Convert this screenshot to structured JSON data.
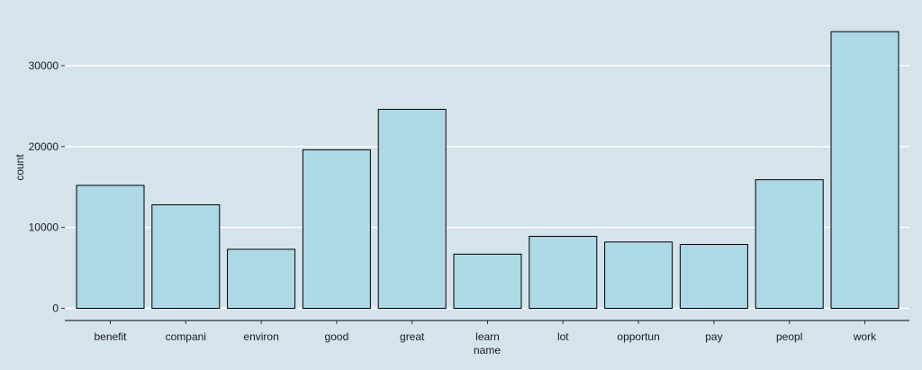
{
  "chart_data": {
    "type": "bar",
    "categories": [
      "benefit",
      "compani",
      "environ",
      "good",
      "great",
      "learn",
      "lot",
      "opportun",
      "pay",
      "peopl",
      "work"
    ],
    "values": [
      15200,
      12800,
      7300,
      19600,
      24600,
      6700,
      8900,
      8200,
      7900,
      15900,
      34200
    ],
    "xlabel": "name",
    "ylabel": "count",
    "ylim": [
      -1500,
      37000
    ],
    "yticks": [
      0,
      10000,
      20000,
      30000
    ],
    "ytick_labels": [
      "0",
      "10000",
      "20000",
      "30000"
    ],
    "grid": "horizontal",
    "colors": {
      "background": "#d5e4eb",
      "bar_fill": "#add8e6",
      "bar_stroke": "#000000",
      "grid": "#ffffff"
    }
  }
}
